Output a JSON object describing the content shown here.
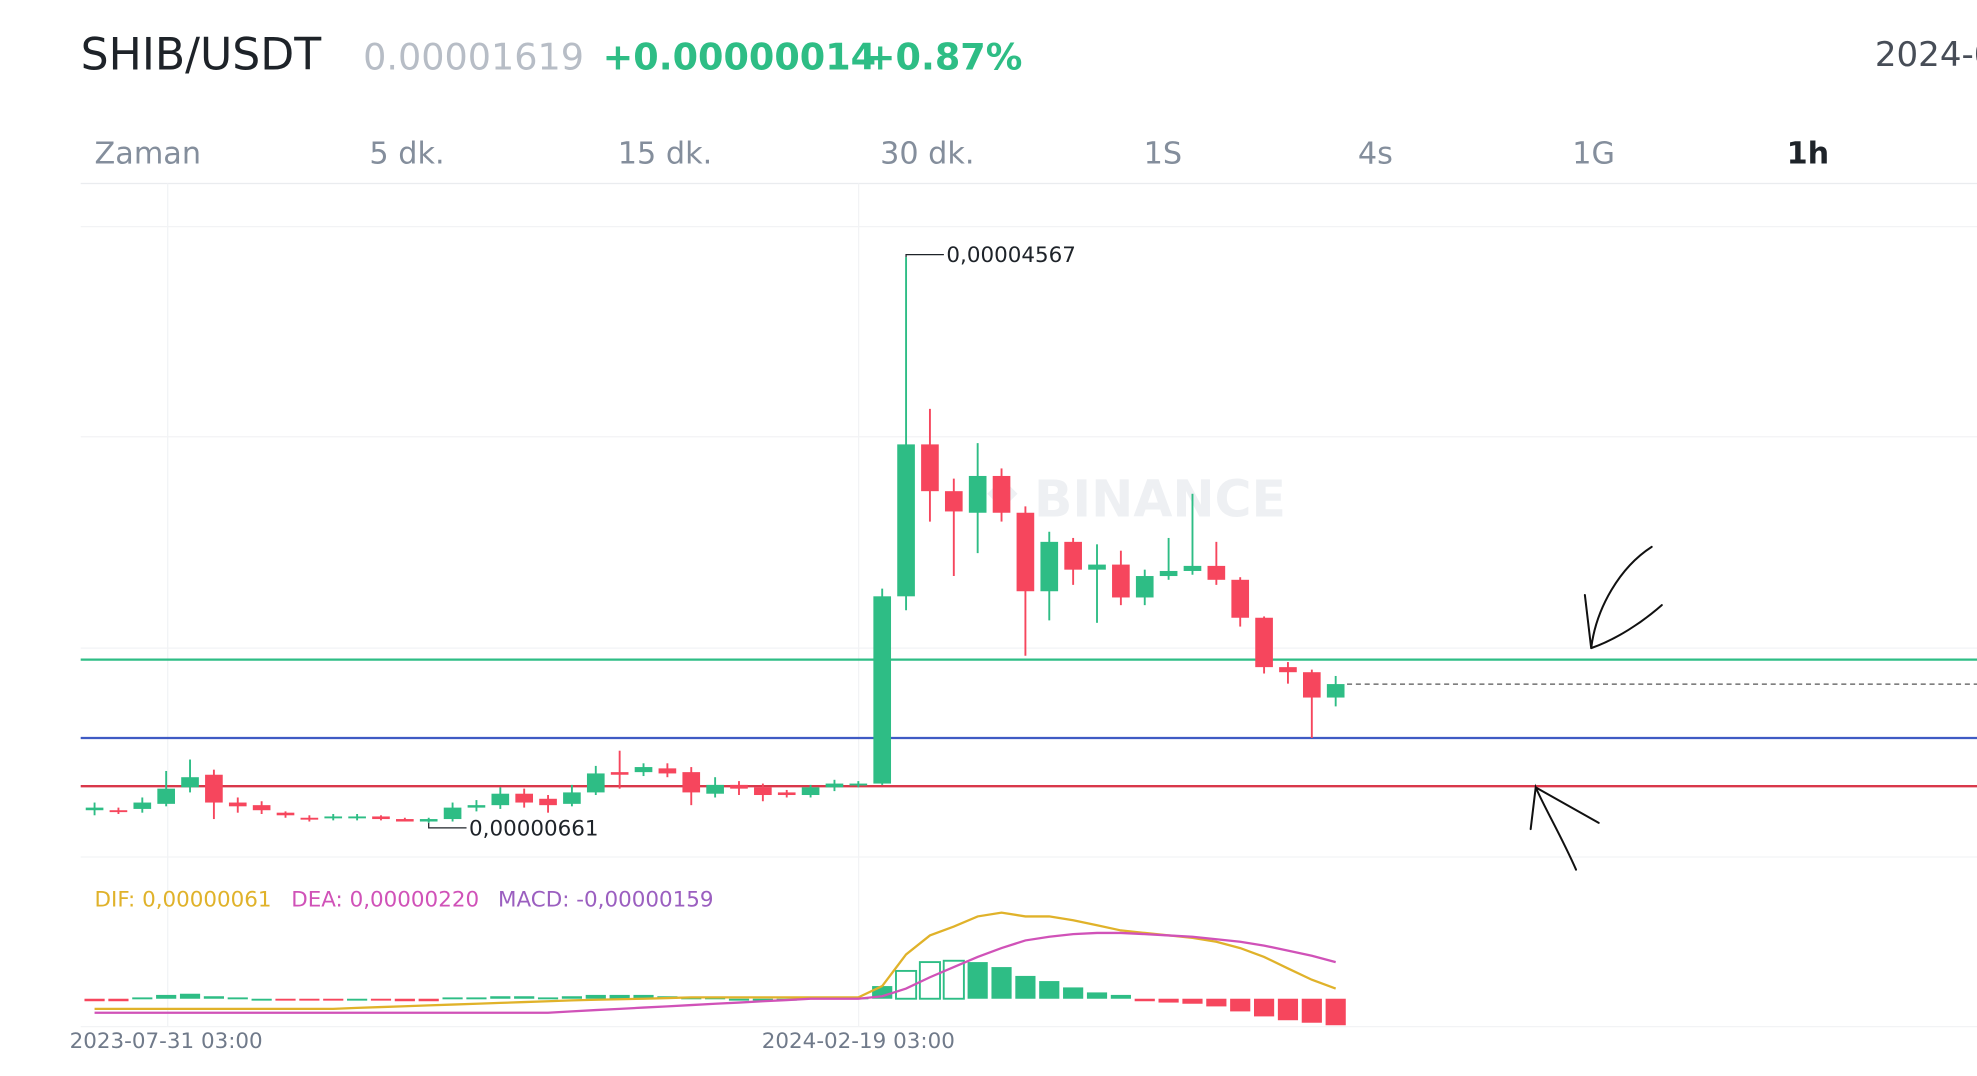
{
  "header": {
    "symbol": "SHIB/USDT",
    "price": "0.00001619",
    "change": "+0.00000014",
    "change_pct": "+0.87%",
    "date": "2024-0"
  },
  "tabs": [
    "Zaman",
    "5 dk.",
    "15 dk.",
    "30 dk.",
    "1S",
    "4s",
    "1G",
    "1h"
  ],
  "chart_data": [
    {
      "type": "candlestick",
      "watermark": "BINANCE",
      "up_color": "#2ebd85",
      "down_color": "#f6465d",
      "ylim": [
        4.25e-06,
        5.075e-05
      ],
      "high_label": "0,00004567",
      "low_label": "0,00000661",
      "levels": [
        {
          "value": 1.788e-05,
          "color": "#2ebd85",
          "style": "solid"
        },
        {
          "value": 1.247e-05,
          "color": "#3f5bc4",
          "style": "solid"
        },
        {
          "value": 9.14e-06,
          "color": "#d9384a",
          "style": "solid"
        },
        {
          "value": 1.619e-05,
          "color": "#555555",
          "style": "dashed"
        }
      ],
      "open": [
        7.48e-06,
        7.48e-06,
        7.57e-06,
        7.92e-06,
        9.06e-06,
        9.93e-06,
        8.01e-06,
        7.83e-06,
        7.31e-06,
        6.96e-06,
        6.96e-06,
        6.96e-06,
        7.05e-06,
        6.87e-06,
        6.7e-06,
        6.87e-06,
        7.66e-06,
        7.83e-06,
        8.62e-06,
        8.27e-06,
        7.92e-06,
        8.71e-06,
        1.011e-05,
        1.011e-05,
        1.037e-05,
        1.011e-05,
        8.62e-06,
        9.23e-06,
        9.06e-06,
        8.71e-06,
        8.53e-06,
        9.06e-06,
        9.23e-06,
        9.32e-06,
        2.225e-05,
        3.274e-05,
        2.951e-05,
        2.802e-05,
        3.056e-05,
        2.802e-05,
        2.26e-05,
        2.601e-05,
        2.409e-05,
        2.444e-05,
        2.217e-05,
        2.365e-05,
        2.4e-05,
        2.435e-05,
        2.339e-05,
        2.077e-05,
        1.736e-05,
        1.701e-05,
        1.526e-05
      ],
      "high": [
        8.01e-06,
        7.66e-06,
        8.36e-06,
        1.019e-05,
        1.098e-05,
        1.028e-05,
        8.36e-06,
        8.1e-06,
        7.4e-06,
        7.13e-06,
        7.22e-06,
        7.22e-06,
        7.13e-06,
        6.96e-06,
        6.96e-06,
        8.01e-06,
        8.18e-06,
        9.06e-06,
        8.97e-06,
        8.53e-06,
        9.23e-06,
        1.054e-05,
        1.159e-05,
        1.072e-05,
        1.072e-05,
        1.046e-05,
        9.76e-06,
        9.49e-06,
        9.32e-06,
        8.88e-06,
        9.23e-06,
        9.58e-06,
        9.49e-06,
        2.278e-05,
        4.567e-05,
        3.519e-05,
        3.038e-05,
        3.283e-05,
        3.108e-05,
        2.846e-05,
        2.671e-05,
        2.628e-05,
        2.584e-05,
        2.54e-05,
        2.409e-05,
        2.628e-05,
        2.933e-05,
        2.601e-05,
        2.357e-05,
        2.086e-05,
        1.771e-05,
        1.719e-05,
        1.675e-05
      ],
      "low": [
        7.13e-06,
        7.22e-06,
        7.31e-06,
        7.75e-06,
        8.71e-06,
        6.87e-06,
        7.31e-06,
        7.22e-06,
        6.96e-06,
        6.7e-06,
        6.78e-06,
        6.78e-06,
        6.78e-06,
        6.7e-06,
        6.61e-06,
        6.7e-06,
        7.4e-06,
        7.57e-06,
        7.66e-06,
        7.31e-06,
        7.75e-06,
        8.53e-06,
        8.97e-06,
        9.84e-06,
        9.76e-06,
        7.83e-06,
        8.36e-06,
        8.53e-06,
        8.1e-06,
        8.36e-06,
        8.36e-06,
        8.8e-06,
        9.06e-06,
        9.23e-06,
        2.129e-05,
        2.741e-05,
        2.365e-05,
        2.523e-05,
        2.741e-05,
        1.815e-05,
        2.059e-05,
        2.304e-05,
        2.042e-05,
        2.164e-05,
        2.164e-05,
        2.339e-05,
        2.374e-05,
        2.304e-05,
        2.016e-05,
        1.692e-05,
        1.622e-05,
        1.247e-05,
        1.465e-05
      ],
      "close": [
        7.66e-06,
        7.4e-06,
        8.01e-06,
        8.97e-06,
        9.76e-06,
        8.01e-06,
        7.75e-06,
        7.48e-06,
        7.13e-06,
        6.87e-06,
        7.05e-06,
        7.05e-06,
        6.87e-06,
        6.7e-06,
        6.87e-06,
        7.66e-06,
        7.83e-06,
        8.62e-06,
        8.01e-06,
        7.83e-06,
        8.71e-06,
        1.002e-05,
        9.93e-06,
        1.046e-05,
        1.002e-05,
        8.71e-06,
        9.23e-06,
        8.97e-06,
        8.53e-06,
        8.53e-06,
        9.06e-06,
        9.32e-06,
        9.32e-06,
        2.225e-05,
        3.274e-05,
        2.951e-05,
        2.811e-05,
        3.056e-05,
        2.802e-05,
        2.26e-05,
        2.601e-05,
        2.409e-05,
        2.444e-05,
        2.217e-05,
        2.365e-05,
        2.4e-05,
        2.435e-05,
        2.339e-05,
        2.077e-05,
        1.736e-05,
        1.701e-05,
        1.526e-05,
        1.619e-05
      ]
    },
    {
      "type": "macd",
      "ylim": [
        -1.75e-06,
        5.62e-06
      ],
      "categories": [
        null,
        null,
        null,
        "2023-07-31 03:00",
        null,
        null,
        null,
        null,
        null,
        null,
        null,
        null,
        null,
        null,
        null,
        null,
        null,
        null,
        null,
        null,
        null,
        null,
        null,
        null,
        null,
        null,
        null,
        null,
        null,
        null,
        null,
        null,
        "2024-02-19 03:00",
        null,
        null,
        null,
        null,
        null,
        null,
        null,
        null,
        null,
        null,
        null,
        null,
        null,
        null,
        null,
        null,
        null,
        null,
        null,
        null
      ],
      "histogram": {
        "name": "MACD: -0,00000159",
        "color": "#9b5fc0",
        "up_color": "#2ebd85",
        "down_color": "#f6465d",
        "values": [
          -1.5e-07,
          -1.5e-07,
          8e-08,
          2.3e-07,
          3e-07,
          1.5e-07,
          8e-08,
          0,
          -8e-08,
          -8e-08,
          -8e-08,
          0,
          -8e-08,
          -1.5e-07,
          -1.5e-07,
          8e-08,
          8e-08,
          1.5e-07,
          1.5e-07,
          8e-08,
          1.5e-07,
          2.3e-07,
          2.3e-07,
          2.3e-07,
          1.5e-07,
          8e-08,
          8e-08,
          0,
          0,
          0,
          8e-08,
          8e-08,
          8e-08,
          7.6e-07,
          1.67e-06,
          2.2e-06,
          2.28e-06,
          2.2e-06,
          1.9e-06,
          1.37e-06,
          1.06e-06,
          6.8e-07,
          3.8e-07,
          2.3e-07,
          -1.5e-07,
          -2.3e-07,
          -3e-07,
          -4.6e-07,
          -7.6e-07,
          -1.06e-06,
          -1.29e-06,
          -1.44e-06,
          -1.59e-06
        ]
      },
      "series": [
        {
          "name": "DIF: 0,00000061",
          "color": "#e0b22a",
          "values": [
            -6.1e-07,
            -6.1e-07,
            -6.1e-07,
            -6.1e-07,
            -6.1e-07,
            -6.1e-07,
            -6.1e-07,
            -6.1e-07,
            -6.1e-07,
            -6.1e-07,
            -6.1e-07,
            -5.5e-07,
            -5e-07,
            -4.5e-07,
            -4e-07,
            -3.5e-07,
            -3e-07,
            -2.5e-07,
            -2e-07,
            -1.5e-07,
            -1e-07,
            -6e-08,
            -3e-08,
            0,
            4e-08,
            8e-08,
            8e-08,
            8e-08,
            8e-08,
            8e-08,
            8e-08,
            8e-08,
            8e-08,
            7.6e-07,
            2.66e-06,
            3.8e-06,
            4.33e-06,
            4.94e-06,
            5.17e-06,
            4.94e-06,
            4.94e-06,
            4.71e-06,
            4.41e-06,
            4.1e-06,
            3.95e-06,
            3.8e-06,
            3.65e-06,
            3.42e-06,
            3.04e-06,
            2.51e-06,
            1.82e-06,
            1.14e-06,
            6.1e-07
          ]
        },
        {
          "name": "DEA: 0,00000220",
          "color": "#d052b8",
          "values": [
            -8.4e-07,
            -8.4e-07,
            -8.4e-07,
            -8.4e-07,
            -8.4e-07,
            -8.4e-07,
            -8.4e-07,
            -8.4e-07,
            -8.4e-07,
            -8.4e-07,
            -8.4e-07,
            -8.4e-07,
            -8.4e-07,
            -8.4e-07,
            -8.4e-07,
            -8.4e-07,
            -8.4e-07,
            -8.4e-07,
            -8.4e-07,
            -8.4e-07,
            -7.6e-07,
            -6.8e-07,
            -6.1e-07,
            -5.3e-07,
            -4.6e-07,
            -3.8e-07,
            -3e-07,
            -2.3e-07,
            -1.5e-07,
            -8e-08,
            0,
            0,
            0,
            1.5e-07,
            6.1e-07,
            1.29e-06,
            1.9e-06,
            2.51e-06,
            3.04e-06,
            3.5e-06,
            3.72e-06,
            3.88e-06,
            3.95e-06,
            3.95e-06,
            3.88e-06,
            3.8e-06,
            3.72e-06,
            3.57e-06,
            3.42e-06,
            3.19e-06,
            2.89e-06,
            2.58e-06,
            2.2e-06
          ]
        }
      ]
    }
  ]
}
